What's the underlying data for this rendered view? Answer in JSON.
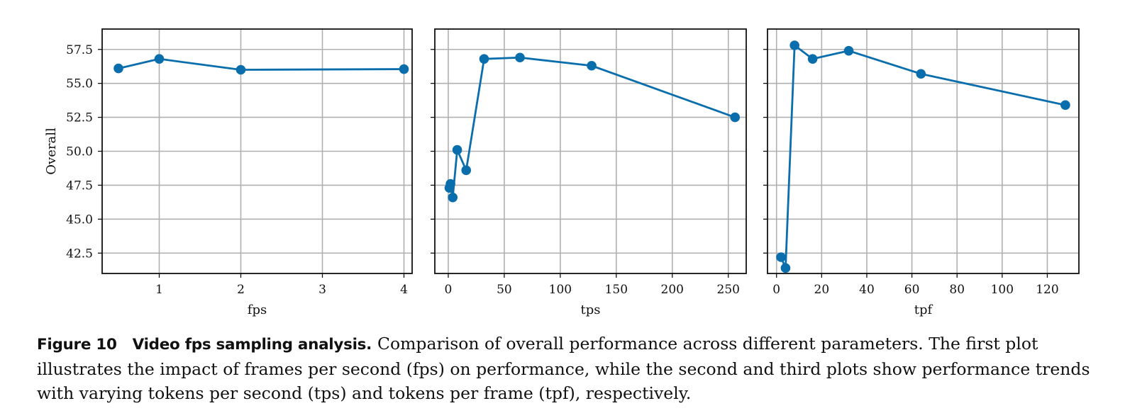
{
  "chart_data": [
    {
      "type": "line",
      "xlabel": "fps",
      "ylabel": "Overall",
      "x": [
        0.5,
        1,
        2,
        4
      ],
      "y": [
        56.1,
        56.8,
        56.0,
        56.05
      ],
      "xticks": [
        1,
        2,
        3,
        4
      ],
      "yticks": [
        42.5,
        45.0,
        47.5,
        50.0,
        52.5,
        55.0,
        57.5
      ],
      "xlim": [
        0.3,
        4.1
      ],
      "ylim": [
        41.0,
        59.0
      ],
      "grid": true,
      "color": "#0a6ead"
    },
    {
      "type": "line",
      "xlabel": "tps",
      "ylabel": "",
      "x": [
        1,
        2,
        4,
        8,
        16,
        32,
        64,
        128,
        256
      ],
      "y": [
        47.3,
        47.6,
        46.6,
        50.1,
        48.6,
        56.8,
        56.9,
        56.3,
        52.5
      ],
      "xticks": [
        0,
        50,
        100,
        150,
        200,
        250
      ],
      "yticks": [
        42.5,
        45.0,
        47.5,
        50.0,
        52.5,
        55.0,
        57.5
      ],
      "xlim": [
        -12,
        266
      ],
      "ylim": [
        41.0,
        59.0
      ],
      "grid": true,
      "color": "#0a6ead"
    },
    {
      "type": "line",
      "xlabel": "tpf",
      "ylabel": "",
      "x": [
        2,
        4,
        8,
        16,
        32,
        64,
        128
      ],
      "y": [
        42.2,
        41.4,
        57.8,
        56.8,
        57.4,
        55.7,
        53.4
      ],
      "xticks": [
        0,
        20,
        40,
        60,
        80,
        100,
        120
      ],
      "yticks": [
        42.5,
        45.0,
        47.5,
        50.0,
        52.5,
        55.0,
        57.5
      ],
      "xlim": [
        -4,
        134
      ],
      "ylim": [
        41.0,
        59.0
      ],
      "grid": true,
      "color": "#0a6ead"
    }
  ],
  "caption": {
    "label": "Figure 10",
    "heading": "Video fps sampling analysis.",
    "text": "Comparison of overall performance across different parameters. The first plot illustrates the impact of frames per second (fps) on performance, while the second and third plots show performance trends with varying tokens per second (tps) and tokens per frame (tpf), respectively."
  }
}
